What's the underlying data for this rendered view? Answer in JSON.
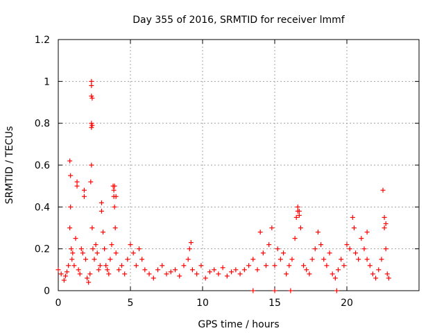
{
  "chart_data": {
    "type": "scatter",
    "title": "Day 355 of 2016, SRMTID for receiver lmmf",
    "xlabel": "GPS time / hours",
    "ylabel": "SRMTID / TECUs",
    "xlim": [
      0,
      25
    ],
    "ylim": [
      0,
      1.2
    ],
    "xticks": [
      0,
      5,
      10,
      15,
      20
    ],
    "xtick_labels": [
      "0",
      "5",
      "10",
      "15",
      "20"
    ],
    "yticks": [
      0,
      0.2,
      0.4,
      0.6,
      0.8,
      1.0,
      1.2
    ],
    "ytick_labels": [
      "0",
      "0.2",
      "0.4",
      "0.6",
      "0.8",
      "1",
      "1.2"
    ],
    "grid": true,
    "marker": "+",
    "color": "#ff0000",
    "series": [
      {
        "name": "SRMTID",
        "x": [
          0.0,
          0.2,
          0.4,
          0.5,
          0.6,
          0.7,
          0.8,
          0.85,
          0.9,
          0.95,
          1.0,
          1.1,
          1.2,
          1.3,
          1.4,
          1.5,
          1.6,
          1.7,
          1.8,
          1.9,
          2.0,
          2.1,
          2.2,
          2.25,
          2.3,
          2.35,
          2.4,
          2.5,
          2.6,
          2.7,
          2.8,
          2.9,
          3.0,
          3.1,
          3.2,
          3.3,
          3.4,
          3.5,
          3.6,
          3.7,
          3.8,
          3.85,
          3.9,
          3.95,
          4.0,
          4.2,
          4.4,
          4.6,
          4.8,
          5.0,
          5.2,
          5.4,
          5.6,
          5.8,
          6.0,
          6.3,
          6.6,
          6.9,
          7.2,
          7.5,
          7.8,
          8.1,
          8.4,
          8.7,
          9.0,
          9.1,
          9.2,
          9.3,
          9.6,
          9.9,
          10.2,
          10.5,
          10.8,
          11.1,
          11.4,
          11.7,
          12.0,
          12.3,
          12.6,
          12.9,
          13.2,
          13.5,
          13.8,
          14.0,
          14.2,
          14.4,
          14.6,
          14.8,
          15.0,
          15.2,
          15.4,
          15.6,
          15.8,
          16.0,
          16.2,
          16.4,
          16.5,
          16.6,
          16.7,
          16.8,
          17.0,
          17.2,
          17.4,
          17.6,
          17.8,
          18.0,
          18.2,
          18.4,
          18.6,
          18.8,
          19.0,
          19.2,
          19.4,
          19.6,
          19.8,
          20.0,
          20.2,
          20.4,
          20.6,
          20.8,
          21.0,
          21.2,
          21.4,
          21.6,
          21.8,
          22.0,
          22.2,
          22.4,
          22.5,
          22.6,
          22.7,
          22.8,
          22.9,
          0.8,
          0.85,
          1.3,
          1.8,
          2.3,
          2.3,
          2.35,
          2.3,
          3.0,
          3.9,
          3.85,
          4.0,
          16.6,
          16.7,
          20.5,
          21.4,
          22.6,
          22.7,
          13.5,
          15.0,
          16.1,
          19.3,
          2.3,
          2.35,
          2.3
        ],
        "y": [
          0.1,
          0.08,
          0.05,
          0.07,
          0.09,
          0.12,
          0.3,
          0.4,
          0.2,
          0.15,
          0.18,
          0.12,
          0.25,
          0.5,
          0.1,
          0.08,
          0.2,
          0.18,
          0.45,
          0.15,
          0.06,
          0.04,
          0.08,
          0.52,
          0.6,
          0.3,
          0.2,
          0.15,
          0.22,
          0.18,
          0.1,
          0.12,
          0.38,
          0.28,
          0.2,
          0.12,
          0.1,
          0.08,
          0.15,
          0.22,
          0.5,
          0.45,
          0.4,
          0.3,
          0.18,
          0.1,
          0.12,
          0.08,
          0.15,
          0.22,
          0.18,
          0.12,
          0.2,
          0.15,
          0.1,
          0.08,
          0.06,
          0.1,
          0.12,
          0.08,
          0.09,
          0.1,
          0.07,
          0.12,
          0.15,
          0.2,
          0.23,
          0.1,
          0.08,
          0.12,
          0.06,
          0.09,
          0.1,
          0.08,
          0.11,
          0.07,
          0.09,
          0.1,
          0.08,
          0.1,
          0.12,
          0.15,
          0.1,
          0.28,
          0.18,
          0.12,
          0.22,
          0.3,
          0.12,
          0.2,
          0.15,
          0.18,
          0.08,
          0.12,
          0.15,
          0.25,
          0.35,
          0.4,
          0.38,
          0.3,
          0.12,
          0.1,
          0.08,
          0.15,
          0.2,
          0.28,
          0.22,
          0.15,
          0.12,
          0.18,
          0.08,
          0.06,
          0.1,
          0.15,
          0.12,
          0.22,
          0.2,
          0.35,
          0.18,
          0.15,
          0.25,
          0.2,
          0.15,
          0.12,
          0.08,
          0.06,
          0.1,
          0.15,
          0.48,
          0.3,
          0.2,
          0.08,
          0.06,
          0.62,
          0.55,
          0.52,
          0.48,
          1.0,
          0.98,
          0.92,
          0.78,
          0.42,
          0.5,
          0.48,
          0.45,
          0.38,
          0.36,
          0.3,
          0.28,
          0.35,
          0.32,
          0.0,
          0.0,
          0.0,
          0.0,
          0.8,
          0.79,
          0.93
        ]
      }
    ]
  }
}
